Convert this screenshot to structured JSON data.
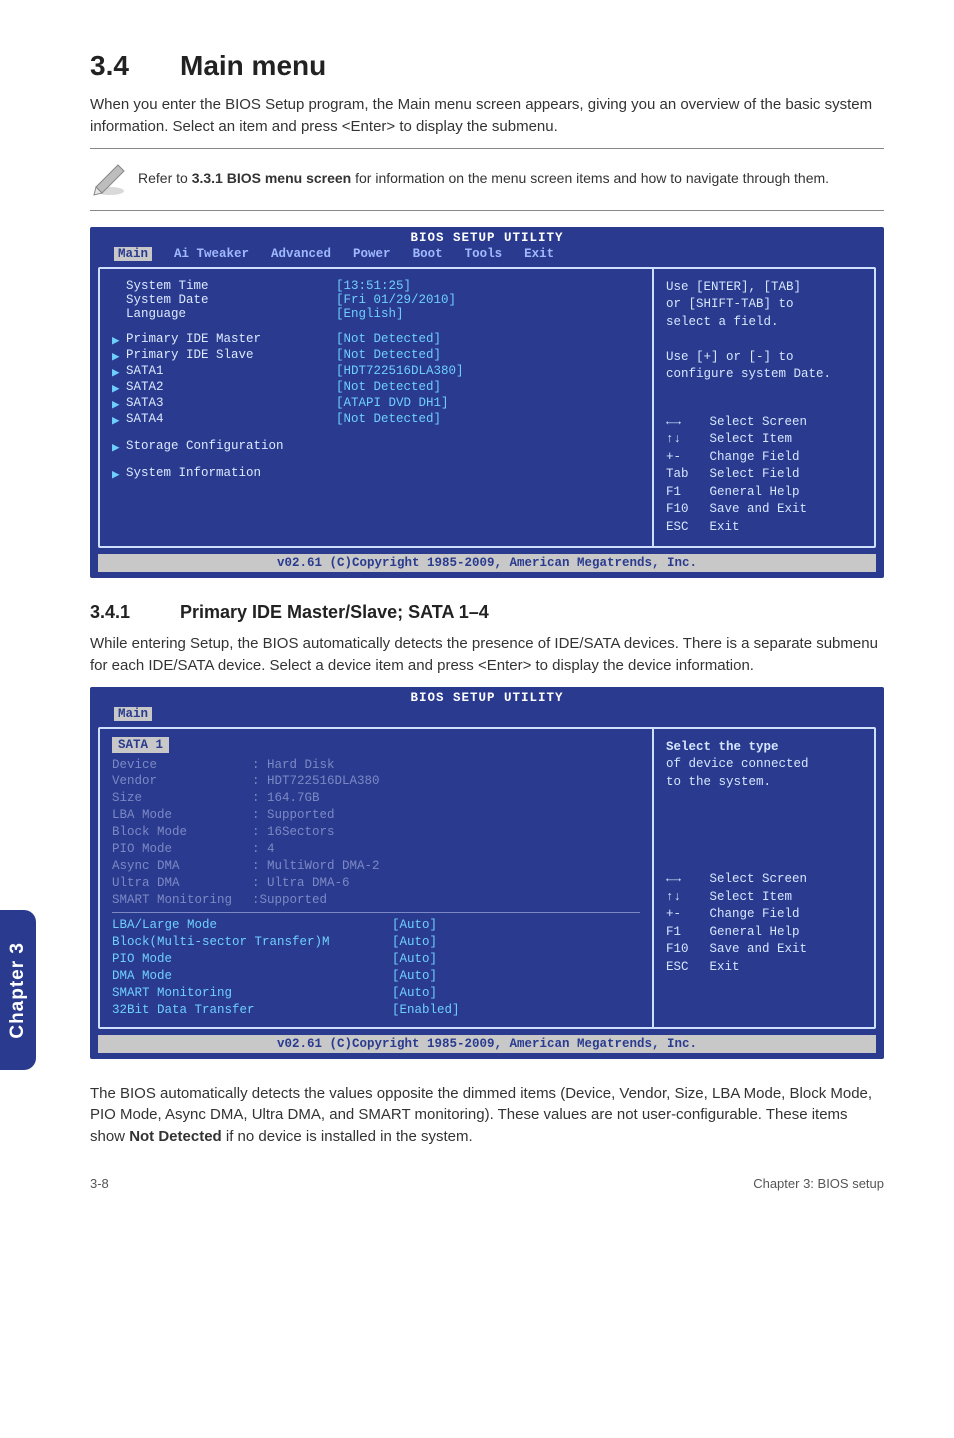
{
  "section": {
    "number": "3.4",
    "title": "Main menu"
  },
  "intro": "When you enter the BIOS Setup program, the Main menu screen appears, giving you an overview of the basic system information. Select an item and press <Enter> to display the submenu.",
  "note": {
    "prefix": "Refer to ",
    "bold": "3.3.1 BIOS menu screen",
    "suffix": " for information on the menu screen items and how to navigate through them."
  },
  "bios1": {
    "title": "BIOS SETUP UTILITY",
    "tabs": [
      "Main",
      "Ai Tweaker",
      "Advanced",
      "Power",
      "Boot",
      "Tools",
      "Exit"
    ],
    "active_tab": "Main",
    "colors": {
      "bg": "#2a3b8f",
      "border": "#cfe0ff",
      "tab_inactive": "#9fb8ff",
      "tab_active_bg": "#c8c8c8",
      "tab_active_fg": "#2a3b8f",
      "value": "#6fcfff",
      "text": "#dce9ff"
    },
    "left_rows": [
      {
        "label": "System Time",
        "value": "[13:51:25]",
        "tri": false
      },
      {
        "label": "System Date",
        "value": "[Fri 01/29/2010]",
        "tri": false
      },
      {
        "label": "Language",
        "value": "[English]",
        "tri": false
      },
      {
        "spacer": true
      },
      {
        "label": "Primary IDE Master",
        "value": "[Not Detected]",
        "tri": true
      },
      {
        "label": "Primary IDE Slave",
        "value": "[Not Detected]",
        "tri": true
      },
      {
        "label": "SATA1",
        "value": "[HDT722516DLA380]",
        "tri": true
      },
      {
        "label": "SATA2",
        "value": "[Not Detected]",
        "tri": true
      },
      {
        "label": "SATA3",
        "value": "[ATAPI DVD DH1]",
        "tri": true
      },
      {
        "label": "SATA4",
        "value": "[Not Detected]",
        "tri": true
      },
      {
        "spacer": true
      },
      {
        "label": "Storage Configuration",
        "value": "",
        "tri": true
      },
      {
        "spacer": true
      },
      {
        "label": "System Information",
        "value": "",
        "tri": true
      }
    ],
    "help": "Use [ENTER], [TAB]\nor [SHIFT-TAB] to\nselect a field.\n\nUse [+] or [-] to\nconfigure system Date.",
    "keys": [
      {
        "k": "←→",
        "d": "Select Screen"
      },
      {
        "k": "↑↓",
        "d": "Select Item"
      },
      {
        "k": "+-",
        "d": "Change Field"
      },
      {
        "k": "Tab",
        "d": "Select Field"
      },
      {
        "k": "F1",
        "d": "General Help"
      },
      {
        "k": "F10",
        "d": "Save and Exit"
      },
      {
        "k": "ESC",
        "d": "Exit"
      }
    ],
    "footer": "v02.61 (C)Copyright 1985-2009, American Megatrends, Inc."
  },
  "sub": {
    "number": "3.4.1",
    "title": "Primary IDE Master/Slave; SATA 1–4"
  },
  "sub_text": "While entering Setup, the BIOS automatically detects the presence of IDE/SATA devices. There is a separate submenu for each IDE/SATA device. Select a device item and press <Enter> to display the device information.",
  "bios2": {
    "title": "BIOS SETUP UTILITY",
    "tabs": [
      "Main"
    ],
    "active_tab": "Main",
    "sata_header": "SATA 1",
    "dim_rows": [
      {
        "l": "Device",
        "v": ": Hard Disk"
      },
      {
        "l": "Vendor",
        "v": ": HDT722516DLA380"
      },
      {
        "l": "Size",
        "v": ": 164.7GB"
      },
      {
        "l": "LBA Mode",
        "v": ": Supported"
      },
      {
        "l": "Block Mode",
        "v": ": 16Sectors"
      },
      {
        "l": "PIO Mode",
        "v": ": 4"
      },
      {
        "l": "Async DMA",
        "v": ": MultiWord DMA-2"
      },
      {
        "l": "Ultra DMA",
        "v": ": Ultra DMA-6"
      },
      {
        "l": "SMART Monitoring",
        "v": ":Supported",
        "nosp": true
      }
    ],
    "opt_rows": [
      {
        "l": "LBA/Large Mode",
        "v": "[Auto]"
      },
      {
        "l": "Block(Multi-sector Transfer)M",
        "v": "[Auto]"
      },
      {
        "l": "PIO Mode",
        "v": "[Auto]"
      },
      {
        "l": "DMA Mode",
        "v": "[Auto]"
      },
      {
        "l": "SMART Monitoring",
        "v": "[Auto]"
      },
      {
        "l": "32Bit Data Transfer",
        "v": "[Enabled]"
      }
    ],
    "help": "Select the type\nof device connected\nto the system.",
    "keys": [
      {
        "k": "←→",
        "d": "Select Screen"
      },
      {
        "k": "↑↓",
        "d": "Select Item"
      },
      {
        "k": "+-",
        "d": "Change Field"
      },
      {
        "k": "F1",
        "d": "General Help"
      },
      {
        "k": "F10",
        "d": "Save and Exit"
      },
      {
        "k": "ESC",
        "d": "Exit"
      }
    ],
    "footer": "v02.61 (C)Copyright 1985-2009, American Megatrends, Inc."
  },
  "closing": "The BIOS automatically detects the values opposite the dimmed items (Device, Vendor, Size, LBA Mode, Block Mode, PIO Mode, Async DMA, Ultra DMA, and SMART monitoring). These values are not user-configurable. These items show ",
  "closing_bold": "Not Detected",
  "closing_end": " if no device is installed in the system.",
  "chapter_tab": "Chapter 3",
  "footer": {
    "left": "3-8",
    "right": "Chapter 3: BIOS setup"
  }
}
